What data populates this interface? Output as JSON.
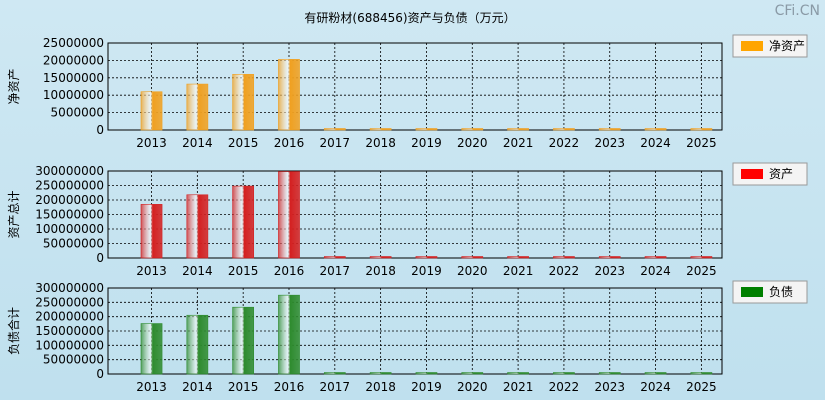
{
  "title": "有研粉材(688456)资产与负债（万元）",
  "watermark": "CFi.CN",
  "chart_data": [
    {
      "type": "bar",
      "ylabel": "净资产",
      "legend": "净资产",
      "color": "#f0a020",
      "legend_color": "#ffa500",
      "categories": [
        "2013",
        "2014",
        "2015",
        "2016",
        "2017",
        "2018",
        "2019",
        "2020",
        "2021",
        "2022",
        "2023",
        "2024",
        "2025"
      ],
      "values": [
        11000000,
        13200000,
        16000000,
        20300000,
        0,
        0,
        0,
        0,
        0,
        0,
        0,
        0,
        0
      ],
      "ylim": [
        0,
        25000000
      ],
      "yticks": [
        "25000000",
        "20000000",
        "15000000",
        "10000000",
        "5000000",
        "0"
      ]
    },
    {
      "type": "bar",
      "ylabel": "资产总计",
      "legend": "资产",
      "color": "#d42020",
      "legend_color": "#ff0000",
      "categories": [
        "2013",
        "2014",
        "2015",
        "2016",
        "2017",
        "2018",
        "2019",
        "2020",
        "2021",
        "2022",
        "2023",
        "2024",
        "2025"
      ],
      "values": [
        185000000,
        218000000,
        248000000,
        298000000,
        0,
        0,
        0,
        0,
        0,
        0,
        0,
        0,
        0
      ],
      "ylim": [
        0,
        300000000
      ],
      "yticks": [
        "300000000",
        "250000000",
        "200000000",
        "150000000",
        "100000000",
        "50000000",
        "0"
      ]
    },
    {
      "type": "bar",
      "ylabel": "负债合计",
      "legend": "负债",
      "color": "#2e8b2e",
      "legend_color": "#008000",
      "categories": [
        "2013",
        "2014",
        "2015",
        "2016",
        "2017",
        "2018",
        "2019",
        "2020",
        "2021",
        "2022",
        "2023",
        "2024",
        "2025"
      ],
      "values": [
        176000000,
        205000000,
        233000000,
        275000000,
        0,
        0,
        0,
        0,
        0,
        0,
        0,
        0,
        0
      ],
      "ylim": [
        0,
        300000000
      ],
      "yticks": [
        "300000000",
        "250000000",
        "200000000",
        "150000000",
        "100000000",
        "50000000",
        "0"
      ]
    }
  ]
}
